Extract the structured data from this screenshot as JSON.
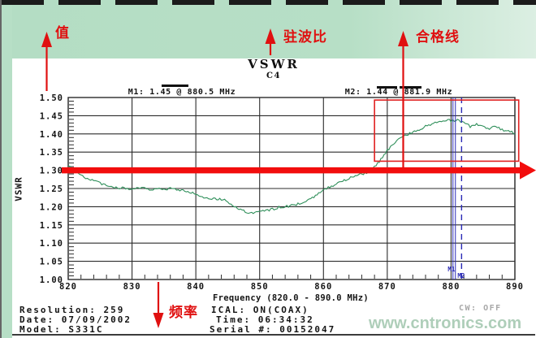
{
  "page": {
    "watermark": "www.cntronics.com",
    "cw_status": "CW: OFF"
  },
  "annotations": {
    "value": "值",
    "vswr": "驻波比",
    "pass_line": "合格线",
    "frequency": "频率"
  },
  "chart": {
    "title": "VSWR",
    "channel": "C4",
    "marker1_readout": "M1: 1.45 @ 880.5 MHz",
    "marker2_readout": "M2: 1.44 @ 881.9 MHz",
    "y_axis_title": "VSWR",
    "x_axis_title": "Frequency (820.0 - 890.0 MHz)"
  },
  "footer": {
    "resolution": "Resolution: 259",
    "date": "Date: 07/09/2002",
    "model": "Model: S331C",
    "ical": "ICAL: ON(COAX)",
    "time": "Time: 06:34:32",
    "serial": "Serial #: 00152047"
  },
  "colors": {
    "background_band": "#b7dfc6",
    "trace_green": "#2f8f5a",
    "annotation_red": "#e01010",
    "limit_red": "#f20d0d",
    "marker_blue": "#2a2ab5",
    "grid": "#2b2b2b",
    "watermark_green": "#a6c9b2"
  },
  "chart_data": {
    "type": "line",
    "title": "VSWR",
    "subtitle": "C4",
    "xlabel": "Frequency (820.0 - 890.0 MHz)",
    "ylabel": "VSWR",
    "xlim": [
      820,
      890
    ],
    "ylim": [
      1.0,
      1.5
    ],
    "x_ticks": [
      820,
      830,
      840,
      850,
      860,
      870,
      880,
      890
    ],
    "y_ticks": [
      1.0,
      1.05,
      1.1,
      1.15,
      1.2,
      1.25,
      1.3,
      1.35,
      1.4,
      1.45,
      1.5
    ],
    "grid": true,
    "legend": "none",
    "pass_limit": 1.3,
    "pass_region_box": {
      "x1": 868,
      "x2": 890.6,
      "y1": 1.325,
      "y2": 1.493
    },
    "markers": [
      {
        "name": "M1",
        "x": 880.5,
        "y": 1.45,
        "style": "solid"
      },
      {
        "name": "M2",
        "x": 881.9,
        "y": 1.44,
        "style": "dashed"
      }
    ],
    "series": [
      {
        "name": "VSWR trace",
        "color": "#2f8f5a",
        "x_start": 820,
        "x_step": 1,
        "values": [
          1.312,
          1.3,
          1.288,
          1.278,
          1.27,
          1.264,
          1.258,
          1.254,
          1.252,
          1.25,
          1.25,
          1.252,
          1.25,
          1.248,
          1.25,
          1.248,
          1.25,
          1.247,
          1.244,
          1.24,
          1.234,
          1.228,
          1.224,
          1.222,
          1.22,
          1.214,
          1.202,
          1.192,
          1.184,
          1.183,
          1.188,
          1.19,
          1.193,
          1.198,
          1.2,
          1.203,
          1.207,
          1.212,
          1.22,
          1.232,
          1.248,
          1.255,
          1.262,
          1.27,
          1.278,
          1.284,
          1.29,
          1.296,
          1.308,
          1.33,
          1.355,
          1.372,
          1.388,
          1.398,
          1.404,
          1.412,
          1.42,
          1.428,
          1.433,
          1.438,
          1.436,
          1.437,
          1.432,
          1.42,
          1.426,
          1.42,
          1.415,
          1.42,
          1.412,
          1.406,
          1.402
        ]
      }
    ]
  }
}
